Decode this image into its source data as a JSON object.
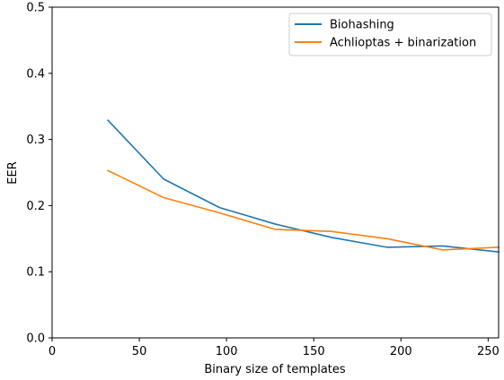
{
  "chart_data": {
    "type": "line",
    "title": "",
    "xlabel": "Binary size of templates",
    "ylabel": "EER",
    "xlim": [
      0,
      256
    ],
    "ylim": [
      0,
      0.5
    ],
    "xticks": [
      0,
      50,
      100,
      150,
      200,
      250
    ],
    "yticks": [
      0.0,
      0.1,
      0.2,
      0.3,
      0.4,
      0.5
    ],
    "xtick_labels": [
      "0",
      "50",
      "100",
      "150",
      "200",
      "250"
    ],
    "ytick_labels": [
      "0.0",
      "0.1",
      "0.2",
      "0.3",
      "0.4",
      "0.5"
    ],
    "grid": false,
    "legend_position": "top-right",
    "series": [
      {
        "name": "Biohashing",
        "color": "#1f77b4",
        "x": [
          32,
          64,
          96,
          128,
          160,
          192,
          224,
          256
        ],
        "y": [
          0.329,
          0.24,
          0.197,
          0.172,
          0.152,
          0.137,
          0.139,
          0.13
        ]
      },
      {
        "name": "Achlioptas + binarization",
        "color": "#ff7f0e",
        "x": [
          32,
          64,
          96,
          128,
          160,
          192,
          224,
          256
        ],
        "y": [
          0.253,
          0.212,
          0.189,
          0.164,
          0.161,
          0.15,
          0.133,
          0.137
        ]
      }
    ]
  }
}
